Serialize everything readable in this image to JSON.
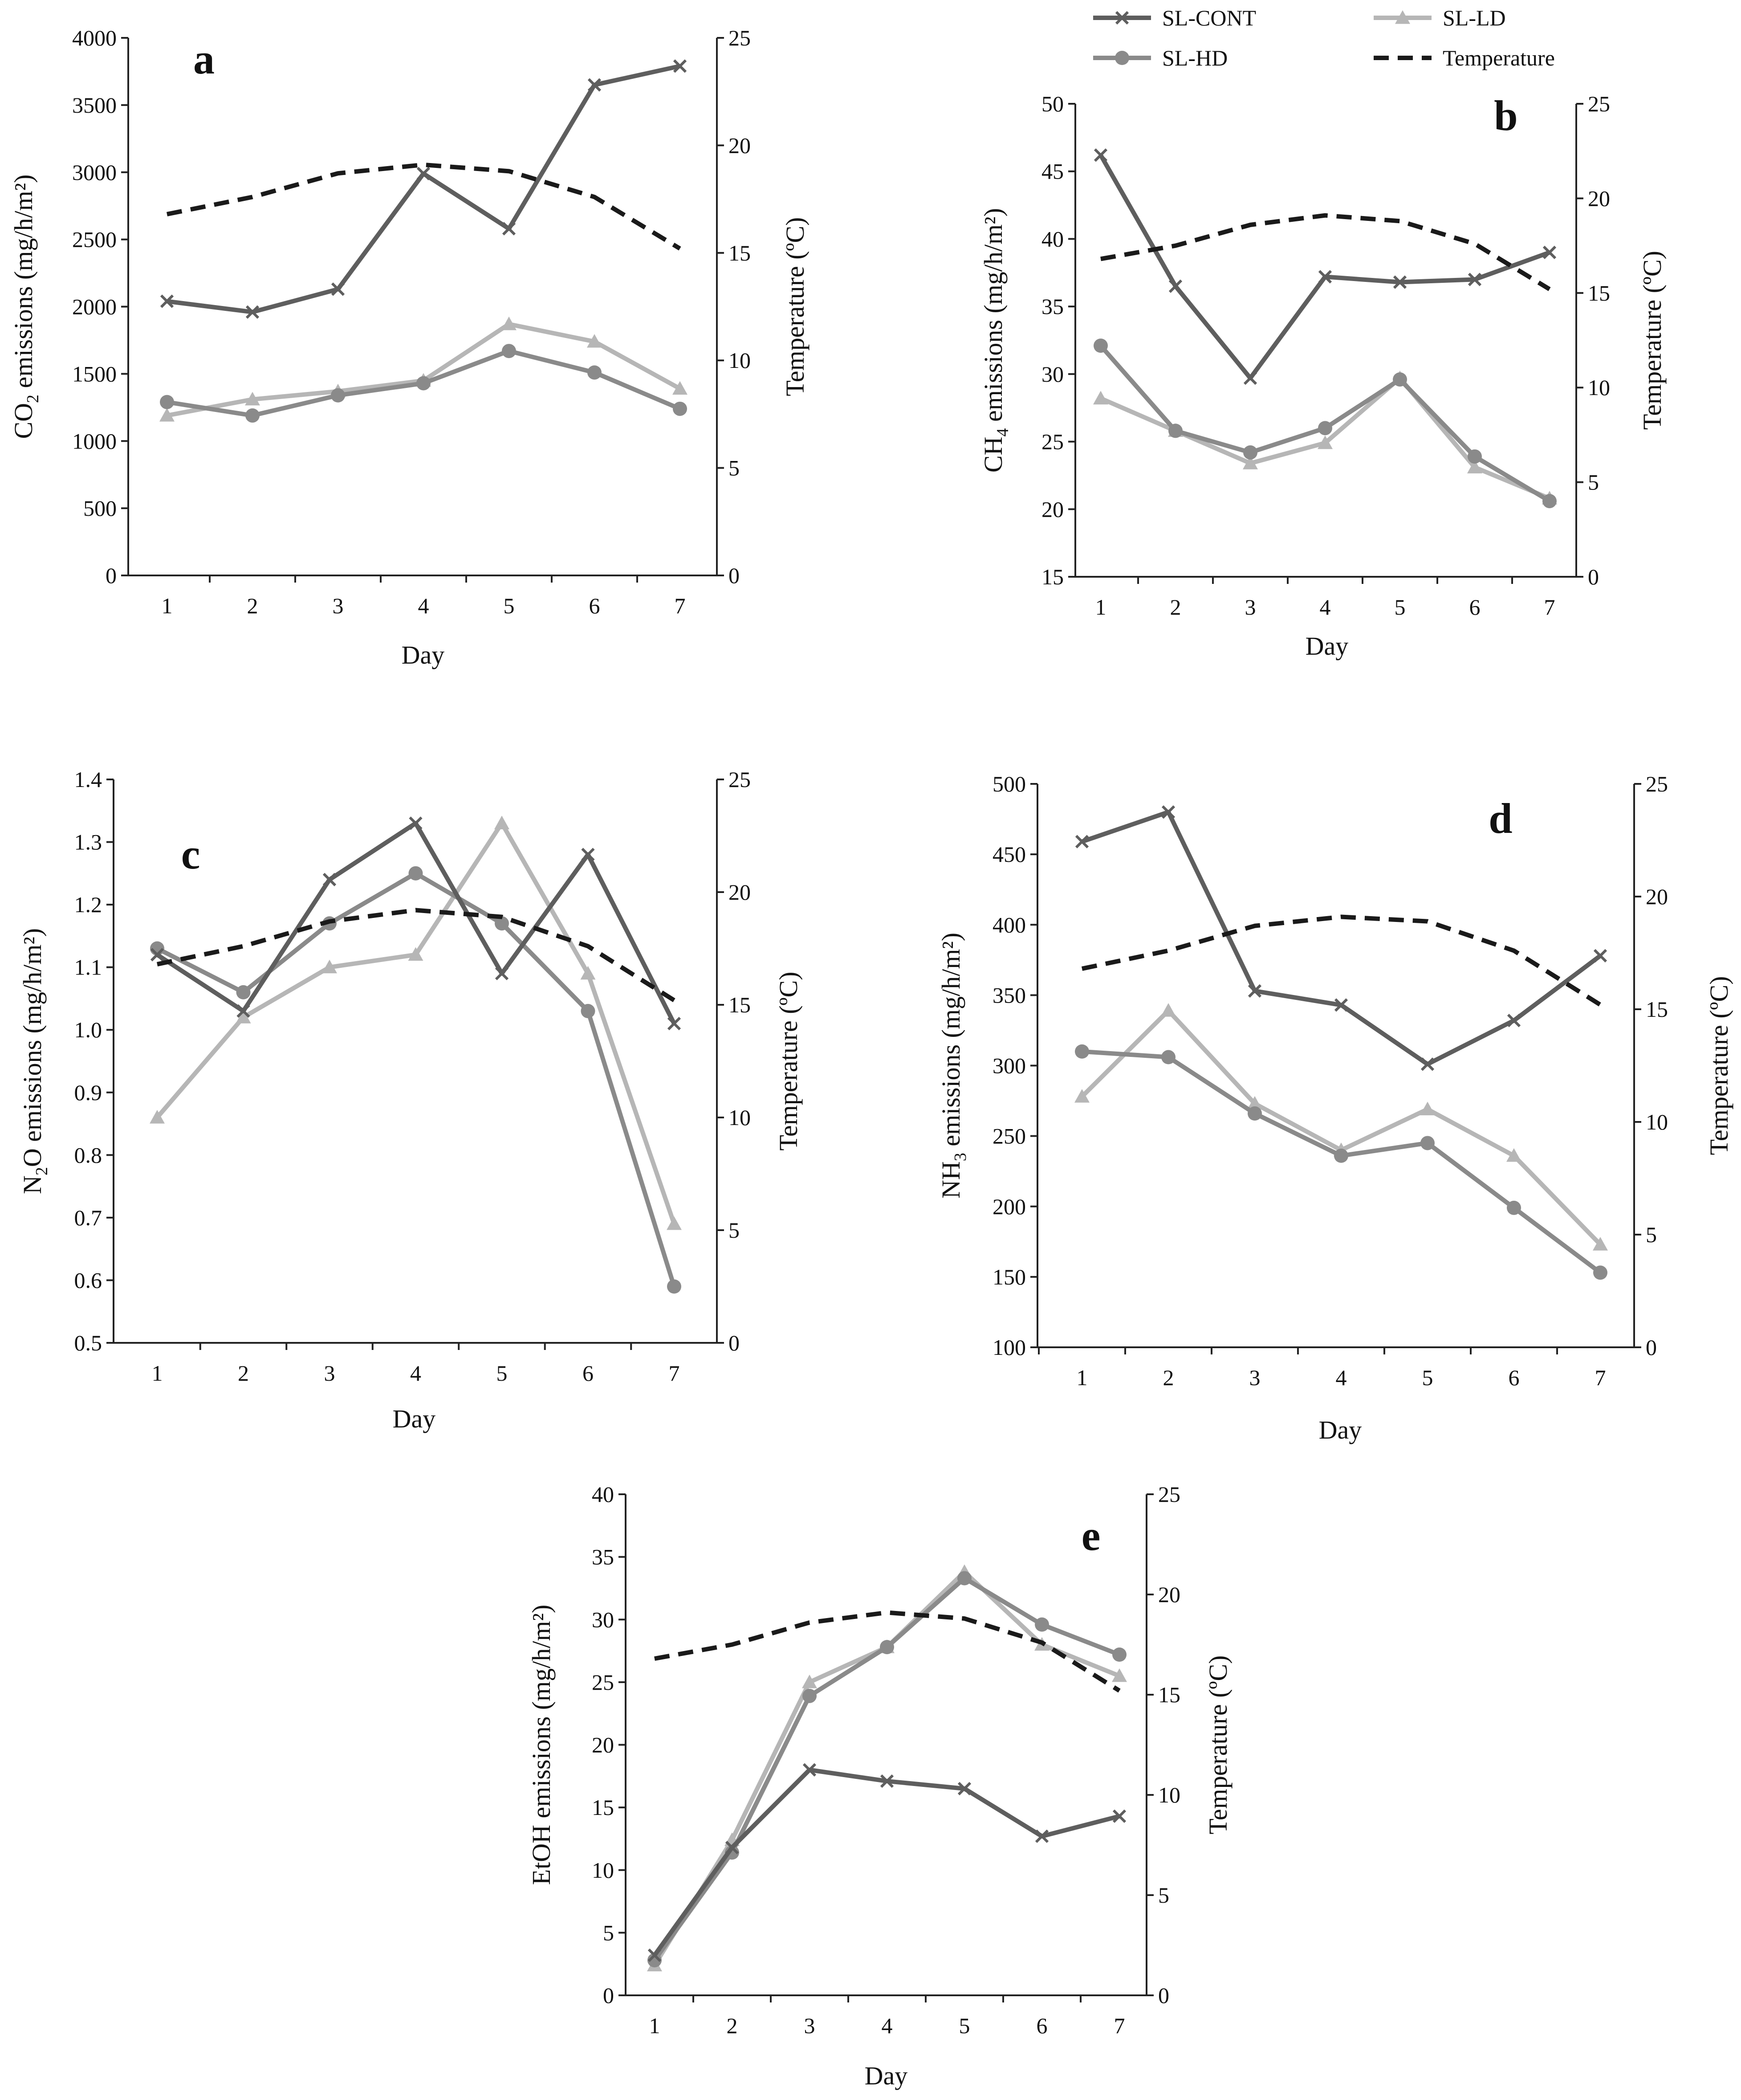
{
  "legend": {
    "entries": [
      {
        "key": "cont",
        "label": "SL-CONT",
        "color": "#5e5e5e",
        "marker": "x",
        "dash": "solid"
      },
      {
        "key": "ld",
        "label": "SL-LD",
        "color": "#b6b6b6",
        "marker": "triangle",
        "dash": "solid"
      },
      {
        "key": "hd",
        "label": "SL-HD",
        "color": "#8a8a8a",
        "marker": "circle",
        "dash": "solid"
      },
      {
        "key": "temp",
        "label": "Temperature",
        "color": "#1a1a1a",
        "marker": "none",
        "dash": "dashed"
      }
    ]
  },
  "chart_data": [
    {
      "panel": "a",
      "type": "line",
      "xlabel": "Day",
      "ylabel": {
        "pre": "CO",
        "sub": "2",
        "post": " emissions (mg/h/m²)"
      },
      "y2label": "Temperature (ºC)",
      "categories": [
        "1",
        "2",
        "3",
        "4",
        "5",
        "6",
        "7"
      ],
      "ylim": [
        0,
        4000
      ],
      "yticks": [
        0,
        500,
        1000,
        1500,
        2000,
        2500,
        3000,
        3500,
        4000
      ],
      "ytick_labels": [
        "0",
        "500",
        "1000",
        "1500",
        "2000",
        "2500",
        "3000",
        "3500",
        "4000"
      ],
      "y2lim": [
        0,
        25
      ],
      "y2ticks": [
        0,
        5,
        10,
        15,
        20,
        25
      ],
      "y2tick_labels": [
        "0",
        "5",
        "10",
        "15",
        "20",
        "25"
      ],
      "series": [
        {
          "key": "cont",
          "name": "SL-CONT",
          "values": [
            2040,
            1960,
            2130,
            2990,
            2580,
            3650,
            3790
          ]
        },
        {
          "key": "ld",
          "name": "SL-LD",
          "values": [
            1190,
            1310,
            1370,
            1450,
            1870,
            1740,
            1390
          ]
        },
        {
          "key": "hd",
          "name": "SL-HD",
          "values": [
            1290,
            1190,
            1340,
            1430,
            1670,
            1510,
            1240
          ]
        },
        {
          "key": "temp",
          "name": "Temperature",
          "axis": "y2",
          "values": [
            16.8,
            17.6,
            18.7,
            19.1,
            18.8,
            17.6,
            15.2
          ]
        }
      ]
    },
    {
      "panel": "b",
      "type": "line",
      "xlabel": "Day",
      "ylabel": {
        "pre": "CH",
        "sub": "4",
        "post": " emissions (mg/h/m²)"
      },
      "y2label": "Temperature (ºC)",
      "categories": [
        "1",
        "2",
        "3",
        "4",
        "5",
        "6",
        "7"
      ],
      "ylim": [
        15,
        50
      ],
      "yticks": [
        15,
        20,
        25,
        30,
        35,
        40,
        45,
        50
      ],
      "ytick_labels": [
        "15",
        "20",
        "25",
        "30",
        "35",
        "40",
        "45",
        "50"
      ],
      "y2lim": [
        0,
        25
      ],
      "y2ticks": [
        0,
        5,
        10,
        15,
        20,
        25
      ],
      "y2tick_labels": [
        "0",
        "5",
        "10",
        "15",
        "20",
        "25"
      ],
      "series": [
        {
          "key": "cont",
          "name": "SL-CONT",
          "values": [
            46.2,
            36.5,
            29.7,
            37.2,
            36.8,
            37.0,
            39.0
          ]
        },
        {
          "key": "ld",
          "name": "SL-LD",
          "values": [
            28.2,
            25.8,
            23.4,
            24.9,
            29.7,
            23.1,
            20.8
          ]
        },
        {
          "key": "hd",
          "name": "SL-HD",
          "values": [
            32.1,
            25.8,
            24.2,
            26.0,
            29.6,
            23.9,
            20.6
          ]
        },
        {
          "key": "temp",
          "name": "Temperature",
          "axis": "y2",
          "values": [
            16.8,
            17.5,
            18.6,
            19.1,
            18.8,
            17.6,
            15.2
          ]
        }
      ]
    },
    {
      "panel": "c",
      "type": "line",
      "xlabel": "Day",
      "ylabel": {
        "pre": "N",
        "sub": "2",
        "post": "O emissions (mg/h/m²)"
      },
      "y2label": "Temperature (ºC)",
      "categories": [
        "1",
        "2",
        "3",
        "4",
        "5",
        "6",
        "7"
      ],
      "ylim": [
        0.5,
        1.4
      ],
      "yticks": [
        0.5,
        0.6,
        0.7,
        0.8,
        0.9,
        1.0,
        1.1,
        1.2,
        1.3,
        1.4
      ],
      "ytick_labels": [
        "0.5",
        "0.6",
        "0.7",
        "0.8",
        "0.9",
        "1.0",
        "1.1",
        "1.2",
        "1.3",
        "1.4"
      ],
      "y2lim": [
        0,
        25
      ],
      "y2ticks": [
        0,
        5,
        10,
        15,
        20,
        25
      ],
      "y2tick_labels": [
        "0",
        "5",
        "10",
        "15",
        "20",
        "25"
      ],
      "series": [
        {
          "key": "cont",
          "name": "SL-CONT",
          "values": [
            1.12,
            1.03,
            1.24,
            1.33,
            1.09,
            1.28,
            1.01
          ]
        },
        {
          "key": "ld",
          "name": "SL-LD",
          "values": [
            0.86,
            1.02,
            1.1,
            1.12,
            1.33,
            1.09,
            0.69
          ]
        },
        {
          "key": "hd",
          "name": "SL-HD",
          "values": [
            1.13,
            1.06,
            1.17,
            1.25,
            1.17,
            1.03,
            0.59
          ]
        },
        {
          "key": "temp",
          "name": "Temperature",
          "axis": "y2",
          "values": [
            16.8,
            17.6,
            18.7,
            19.2,
            18.9,
            17.6,
            15.2
          ]
        }
      ]
    },
    {
      "panel": "d",
      "type": "line",
      "xlabel": "Day",
      "ylabel": {
        "pre": "NH",
        "sub": "3",
        "post": " emissions (mg/h/m²)"
      },
      "y2label": "Temperature (ºC)",
      "categories": [
        "1",
        "2",
        "3",
        "4",
        "5",
        "6",
        "7"
      ],
      "ylim": [
        100,
        500
      ],
      "yticks": [
        100,
        150,
        200,
        250,
        300,
        350,
        400,
        450,
        500
      ],
      "ytick_labels": [
        "100",
        "150",
        "200",
        "250",
        "300",
        "350",
        "400",
        "450",
        "500"
      ],
      "y2lim": [
        0,
        25
      ],
      "y2ticks": [
        0,
        5,
        10,
        15,
        20,
        25
      ],
      "y2tick_labels": [
        "0",
        "5",
        "10",
        "15",
        "20",
        "25"
      ],
      "series": [
        {
          "key": "cont",
          "name": "SL-CONT",
          "values": [
            459,
            480,
            353,
            343,
            301,
            332,
            378
          ]
        },
        {
          "key": "ld",
          "name": "SL-LD",
          "values": [
            278,
            339,
            273,
            240,
            269,
            236,
            173
          ]
        },
        {
          "key": "hd",
          "name": "SL-HD",
          "values": [
            310,
            306,
            266,
            236,
            245,
            199,
            153
          ]
        },
        {
          "key": "temp",
          "name": "Temperature",
          "axis": "y2",
          "values": [
            16.8,
            17.6,
            18.7,
            19.1,
            18.9,
            17.6,
            15.2
          ]
        }
      ]
    },
    {
      "panel": "e",
      "type": "line",
      "xlabel": "Day",
      "ylabel": {
        "pre": "EtOH emissions (mg/h/m",
        "sub": "",
        "post": "²)"
      },
      "y2label": "Temperature (ºC)",
      "categories": [
        "1",
        "2",
        "3",
        "4",
        "5",
        "6",
        "7"
      ],
      "ylim": [
        0,
        40
      ],
      "yticks": [
        0,
        5,
        10,
        15,
        20,
        25,
        30,
        35,
        40
      ],
      "ytick_labels": [
        "0",
        "5",
        "10",
        "15",
        "20",
        "25",
        "30",
        "35",
        "40"
      ],
      "y2lim": [
        0,
        25
      ],
      "y2ticks": [
        0,
        5,
        10,
        15,
        20,
        25
      ],
      "y2tick_labels": [
        "0",
        "5",
        "10",
        "15",
        "20",
        "25"
      ],
      "series": [
        {
          "key": "cont",
          "name": "SL-CONT",
          "values": [
            3.2,
            11.8,
            18.0,
            17.1,
            16.5,
            12.7,
            14.3
          ]
        },
        {
          "key": "ld",
          "name": "SL-LD",
          "values": [
            2.4,
            12.4,
            25.0,
            27.8,
            33.8,
            28.0,
            25.5
          ]
        },
        {
          "key": "hd",
          "name": "SL-HD",
          "values": [
            2.8,
            11.4,
            23.9,
            27.8,
            33.3,
            29.6,
            27.2
          ]
        },
        {
          "key": "temp",
          "name": "Temperature",
          "axis": "y2",
          "values": [
            16.8,
            17.5,
            18.6,
            19.1,
            18.8,
            17.6,
            15.2
          ]
        }
      ]
    }
  ]
}
